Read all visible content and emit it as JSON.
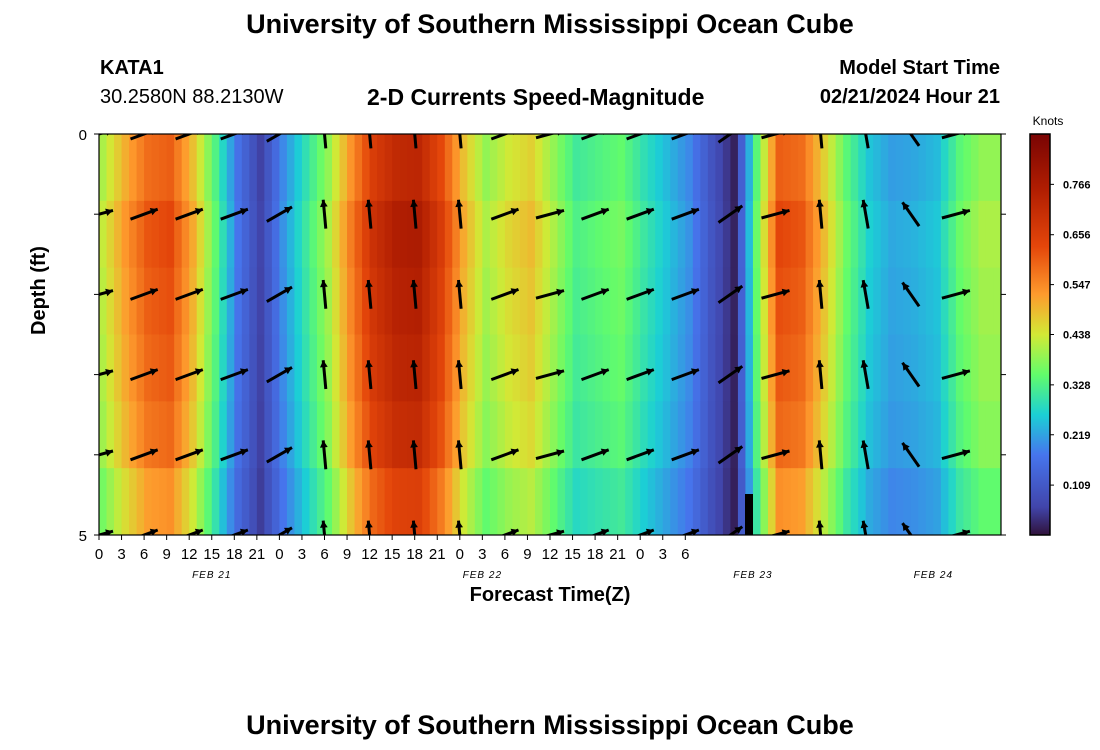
{
  "page": {
    "title_top": "University of Southern Mississippi Ocean Cube",
    "title_bottom": "University of Southern Mississippi Ocean Cube",
    "station": "KATA1",
    "coords": "30.2580N  88.2130W",
    "plot_title": "2-D Currents Speed-Magnitude",
    "model_start_label": "Model Start Time",
    "model_start_value": "02/21/2024 Hour 21"
  },
  "chart_data": {
    "type": "heatmap",
    "title": "2-D Currents Speed-Magnitude",
    "xlabel": "Forecast Time(Z)",
    "ylabel": "Depth (ft)",
    "y_ticks": [
      "0",
      "5"
    ],
    "ylim": [
      0,
      5
    ],
    "x_ticks": [
      "0",
      "3",
      "6",
      "9",
      "12",
      "15",
      "18",
      "21",
      "0",
      "3",
      "6",
      "9",
      "12",
      "15",
      "18",
      "21",
      "0",
      "3",
      "6",
      "9",
      "12",
      "15",
      "18",
      "21",
      "0",
      "3",
      "6"
    ],
    "date_labels": [
      {
        "label": "FEB 21",
        "hour": 15
      },
      {
        "label": "FEB 22",
        "hour": 51
      },
      {
        "label": "FEB 23",
        "hour": 87
      },
      {
        "label": "FEB 24",
        "hour": 111
      }
    ],
    "colorbar": {
      "units": "Knots",
      "ticks": [
        "0.109",
        "0.219",
        "0.328",
        "0.438",
        "0.547",
        "0.656",
        "0.766"
      ],
      "min": 0.0,
      "max": 0.876
    },
    "hours": [
      0,
      3,
      6,
      9,
      12,
      15,
      18,
      21,
      24,
      27,
      30,
      33,
      36,
      39,
      42,
      45,
      48,
      51,
      54,
      57,
      60,
      63,
      66,
      69,
      72,
      75,
      78,
      81,
      84,
      87,
      90,
      93,
      96,
      99,
      102,
      105,
      108,
      111,
      114,
      117
    ],
    "speeds": [
      0.42,
      0.52,
      0.6,
      0.62,
      0.5,
      0.34,
      0.17,
      0.06,
      0.2,
      0.3,
      0.4,
      0.55,
      0.68,
      0.74,
      0.75,
      0.65,
      0.5,
      0.4,
      0.45,
      0.48,
      0.4,
      0.32,
      0.34,
      0.36,
      0.3,
      0.25,
      0.2,
      0.1,
      0.02,
      0.35,
      0.62,
      0.6,
      0.48,
      0.35,
      0.26,
      0.22,
      0.23,
      0.25,
      0.35,
      0.4
    ],
    "depth_factors": [
      0.97,
      1.02,
      1.0,
      0.98,
      0.95,
      0.87
    ],
    "vector_hours": [
      0,
      6,
      12,
      18,
      24,
      30,
      36,
      42,
      48,
      54,
      60,
      66,
      72,
      78,
      84,
      90,
      96,
      102,
      108,
      114
    ],
    "vector_depths": [
      0,
      1,
      2,
      3,
      4,
      5
    ],
    "vector_dirs": [
      75,
      70,
      70,
      70,
      60,
      -5,
      -5,
      -5,
      -5,
      70,
      75,
      70,
      70,
      70,
      55,
      75,
      -5,
      -10,
      -35,
      75
    ]
  }
}
